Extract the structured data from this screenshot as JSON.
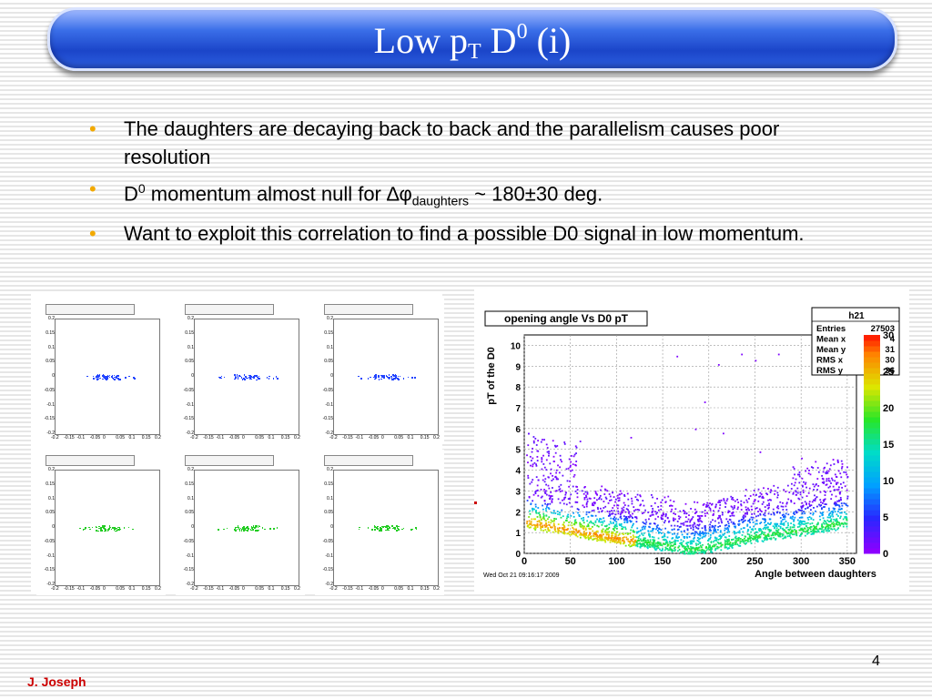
{
  "title": {
    "main": "Low p",
    "sub": "T",
    "mid": " D",
    "sup": "0",
    "tail": " (i)"
  },
  "bullets": [
    {
      "text": "The daughters are decaying back to back and the parallelism causes poor resolution"
    },
    {
      "pre": "D",
      "sup": "0",
      "mid": " momentum almost null for ∆φ",
      "sub": "daughters",
      "post": " ~ 180±30 deg."
    },
    {
      "text": "Want to exploit this correlation to find a possible D0 signal in low momentum."
    }
  ],
  "bullet_glyph": "•",
  "small_plots": {
    "y_ticks": [
      "0.2",
      "0.15",
      "0.1",
      "0.05",
      "0",
      "-0.05",
      "-0.1",
      "-0.15",
      "-0.2"
    ],
    "x_ticks": [
      "-0.2",
      "-0.15",
      "-0.1",
      "-0.05",
      "0",
      "0.05",
      "0.1",
      "0.15",
      "0.2"
    ],
    "colors": [
      "#2244ff",
      "#2244ff",
      "#2244ff",
      "#22cc22",
      "#22cc22",
      "#22cc22"
    ]
  },
  "chart_data": {
    "type": "heatmap",
    "title": "opening angle Vs D0 pT",
    "xlabel": "Angle between daughters",
    "ylabel": "pT of the D0",
    "xlim": [
      0,
      360
    ],
    "ylim": [
      0,
      10.5
    ],
    "x_ticks": [
      0,
      50,
      100,
      150,
      200,
      250,
      300,
      350
    ],
    "y_ticks": [
      0,
      1,
      2,
      3,
      4,
      5,
      6,
      7,
      8,
      9,
      10
    ],
    "colorbar_ticks": [
      0,
      5,
      10,
      15,
      20,
      25,
      30
    ],
    "colorbar_max": 30,
    "grid": true,
    "stats_box": {
      "name": "h21",
      "rows": [
        {
          "label": "Entries",
          "value": "27503"
        },
        {
          "label": "Mean x",
          "value": "4"
        },
        {
          "label": "Mean y",
          "value": "31"
        },
        {
          "label": "RMS x",
          "value": "30"
        },
        {
          "label": "RMS y",
          "value": "36"
        }
      ]
    },
    "timestamp": "Wed Oct 21 09:16:17 2009",
    "ridge": [
      [
        0,
        1.4
      ],
      [
        50,
        1.0
      ],
      [
        100,
        0.6
      ],
      [
        150,
        0.3
      ],
      [
        180,
        0.05
      ],
      [
        210,
        0.3
      ],
      [
        250,
        0.7
      ],
      [
        300,
        1.0
      ],
      [
        350,
        1.4
      ]
    ]
  },
  "footer": {
    "page_number": "4",
    "author": "J. Joseph"
  }
}
